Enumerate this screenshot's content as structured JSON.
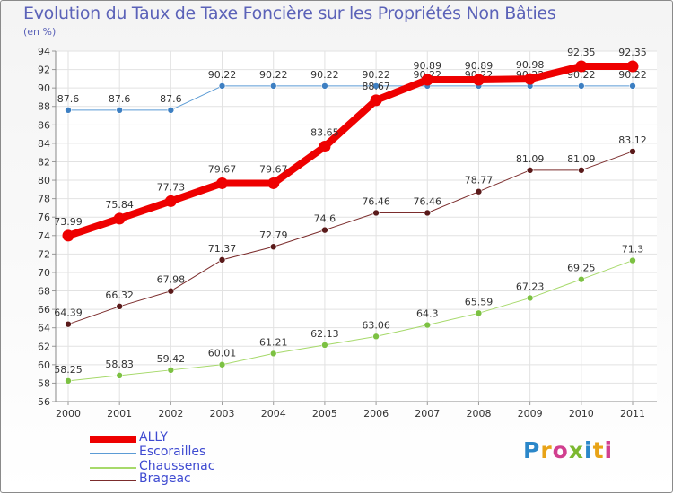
{
  "title": "Evolution du Taux de Taxe Foncière sur les Propriétés Non Bâties",
  "subtitle": "(en %)",
  "brand": [
    "P",
    "r",
    "o",
    "x",
    "i",
    "t",
    "i"
  ],
  "brand_colors": [
    "#2b87c9",
    "#e8a317",
    "#d13f8f",
    "#7cb830",
    "#2b87c9",
    "#e8a317",
    "#d13f8f"
  ],
  "chart_data": {
    "type": "line",
    "title": "Evolution du Taux de Taxe Foncière sur les Propriétés Non Bâties",
    "ylabel": "(en %)",
    "xlabel": "",
    "categories": [
      "2000",
      "2001",
      "2002",
      "2003",
      "2004",
      "2005",
      "2006",
      "2007",
      "2008",
      "2009",
      "2010",
      "2011"
    ],
    "ylim": [
      56,
      94
    ],
    "yticks": [
      56,
      58,
      60,
      62,
      64,
      66,
      68,
      70,
      72,
      74,
      76,
      78,
      80,
      82,
      84,
      86,
      88,
      90,
      92,
      94
    ],
    "grid": true,
    "series": [
      {
        "name": "Escorailles",
        "color": "#5b9bd5",
        "marker": "#3d7fc2",
        "values": [
          87.6,
          87.6,
          87.6,
          90.22,
          90.22,
          90.22,
          90.22,
          90.22,
          90.22,
          90.22,
          90.22,
          90.22
        ],
        "labels": [
          "87.6",
          "87.6",
          "87.6",
          "90.22",
          "90.22",
          "90.22",
          "90.22",
          "90.22",
          "90.22",
          "90.22",
          "90.22",
          "90.22"
        ]
      },
      {
        "name": "Chaussenac",
        "color": "#a6d96a",
        "marker": "#7cc142",
        "values": [
          58.25,
          58.83,
          59.42,
          60.01,
          61.21,
          62.13,
          63.06,
          64.3,
          65.59,
          67.23,
          69.25,
          71.3
        ],
        "labels": [
          "58.25",
          "58.83",
          "59.42",
          "60.01",
          "61.21",
          "62.13",
          "63.06",
          "64.3",
          "65.59",
          "67.23",
          "69.25",
          "71.3"
        ]
      },
      {
        "name": "Brageac",
        "color": "#7b2c2c",
        "marker": "#5a1a1a",
        "values": [
          64.39,
          66.32,
          67.98,
          71.37,
          72.79,
          74.6,
          76.46,
          76.46,
          78.77,
          81.09,
          81.09,
          83.12
        ],
        "labels": [
          "64.39",
          "66.32",
          "67.98",
          "71.37",
          "72.79",
          "74.6",
          "76.46",
          "76.46",
          "78.77",
          "81.09",
          "81.09",
          "83.12"
        ]
      },
      {
        "name": "ALLY",
        "color": "#ee0000",
        "marker": "#ee0000",
        "values": [
          73.99,
          75.84,
          77.73,
          79.67,
          79.67,
          83.65,
          88.67,
          90.89,
          90.89,
          90.98,
          92.35,
          92.35
        ],
        "labels": [
          "73.99",
          "75.84",
          "77.73",
          "79.67",
          "79.67",
          "83.65",
          "88.67",
          "90.89",
          "90.89",
          "90.98",
          "92.35",
          "92.35"
        ]
      }
    ],
    "legend": [
      "ALLY",
      "Escorailles",
      "Chaussenac",
      "Brageac"
    ],
    "legend_position": "bottom-left"
  }
}
